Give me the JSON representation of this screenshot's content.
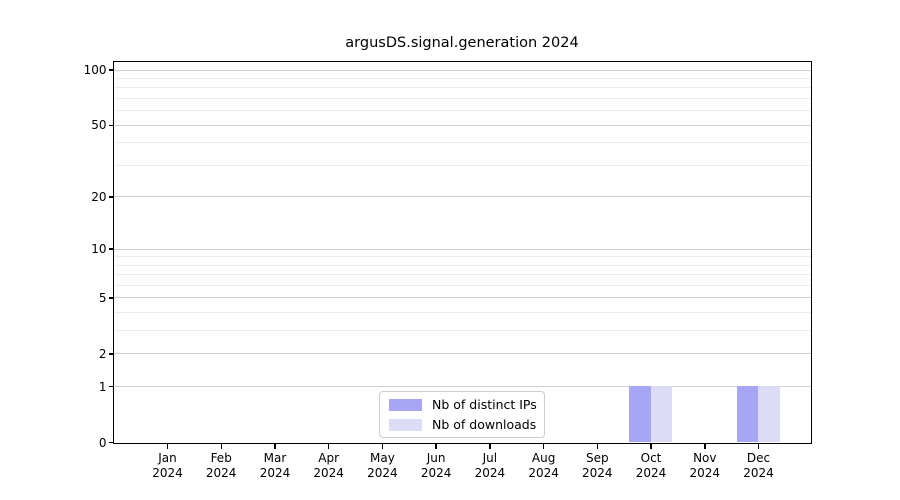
{
  "figure": {
    "background": "#ffffff"
  },
  "chart_data": {
    "type": "bar",
    "title": "argusDS.signal.generation 2024",
    "categories": [
      "Jan",
      "Feb",
      "Mar",
      "Apr",
      "May",
      "Jun",
      "Jul",
      "Aug",
      "Sep",
      "Oct",
      "Nov",
      "Dec"
    ],
    "category_year": "2024",
    "series": [
      {
        "name": "Nb of distinct IPs",
        "color": "#a6a6f5",
        "values": [
          0,
          0,
          0,
          0,
          0,
          0,
          0,
          0,
          0,
          1,
          0,
          1
        ]
      },
      {
        "name": "Nb of downloads",
        "color": "#dcdcf7",
        "values": [
          0,
          0,
          0,
          0,
          0,
          0,
          0,
          0,
          0,
          1,
          0,
          1
        ]
      }
    ],
    "xlabel": "",
    "ylabel": "",
    "y_scale": "log10(1+y)",
    "y_ticks": [
      0,
      1,
      2,
      5,
      10,
      20,
      50,
      100
    ],
    "y_tick_labels": [
      "0",
      "1",
      "2",
      "5",
      "10",
      "20",
      "50",
      "100"
    ],
    "y_minor_ticks": [
      3,
      4,
      6,
      7,
      8,
      9,
      30,
      40,
      60,
      70,
      80,
      90
    ],
    "ylim": [
      0,
      110
    ],
    "grid": "horizontal",
    "legend_position": "lower center"
  },
  "colors": {
    "major_grid": "#d2d2d2",
    "minor_grid": "#ededed",
    "spine": "#000000",
    "legend_border": "#cccccc",
    "bar_distinct_ips": "#a6a6f5",
    "bar_downloads": "#dcdcf7"
  }
}
